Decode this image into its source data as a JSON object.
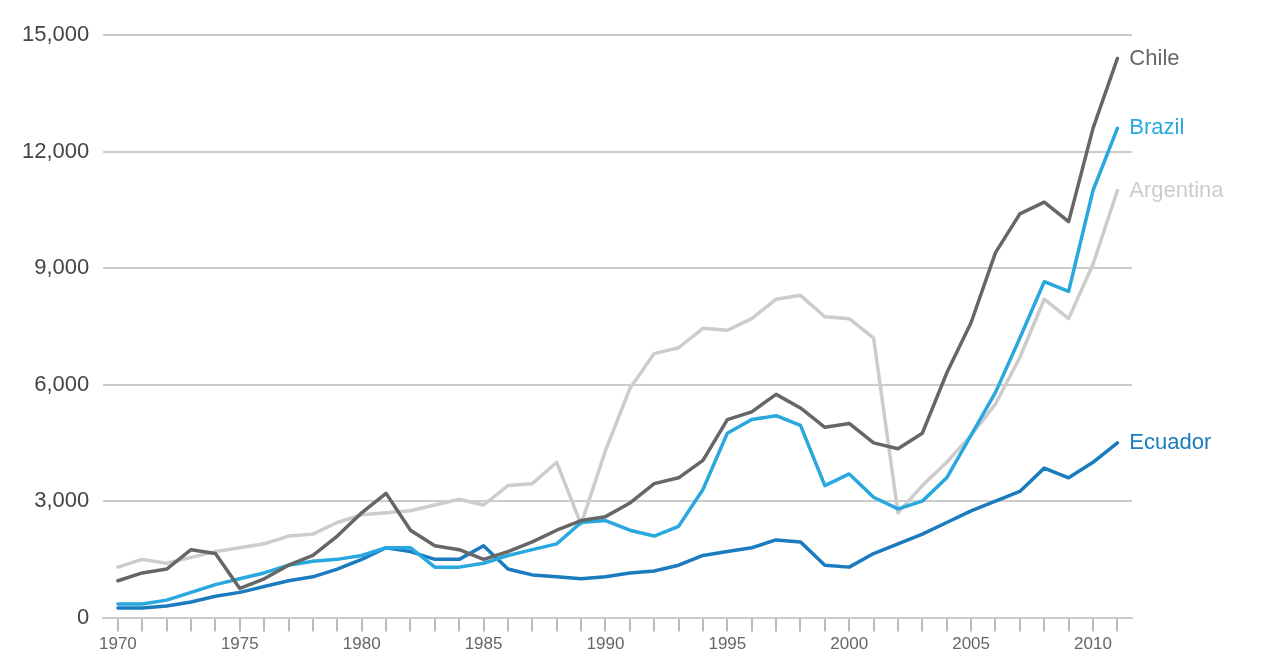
{
  "chart_data": {
    "type": "line",
    "x": [
      1970,
      1971,
      1972,
      1973,
      1974,
      1975,
      1976,
      1977,
      1978,
      1979,
      1980,
      1981,
      1982,
      1983,
      1984,
      1985,
      1986,
      1987,
      1988,
      1989,
      1990,
      1991,
      1992,
      1993,
      1994,
      1995,
      1996,
      1997,
      1998,
      1999,
      2000,
      2001,
      2002,
      2003,
      2004,
      2005,
      2006,
      2007,
      2008,
      2009,
      2010,
      2011
    ],
    "series": [
      {
        "name": "Chile",
        "color": "#666666",
        "values": [
          950,
          1150,
          1250,
          1750,
          1650,
          750,
          1000,
          1350,
          1600,
          2100,
          2700,
          3200,
          2250,
          1850,
          1750,
          1500,
          1700,
          1950,
          2250,
          2500,
          2600,
          2950,
          3450,
          3600,
          4050,
          5100,
          5300,
          5750,
          5400,
          4900,
          5000,
          4500,
          4350,
          4750,
          6300,
          7600,
          9400,
          10400,
          10700,
          10200,
          12600,
          14400
        ]
      },
      {
        "name": "Brazil",
        "color": "#29a8e0",
        "values": [
          350,
          350,
          450,
          650,
          850,
          1000,
          1150,
          1350,
          1450,
          1500,
          1600,
          1800,
          1800,
          1300,
          1300,
          1400,
          1600,
          1750,
          1900,
          2450,
          2500,
          2250,
          2100,
          2350,
          3300,
          4750,
          5100,
          5200,
          4950,
          3400,
          3700,
          3100,
          2800,
          3000,
          3600,
          4700,
          5800,
          7200,
          8650,
          8400,
          11000,
          12600
        ]
      },
      {
        "name": "Argentina",
        "color": "#cccccc",
        "values": [
          1300,
          1500,
          1400,
          1550,
          1700,
          1800,
          1900,
          2100,
          2150,
          2450,
          2650,
          2700,
          2750,
          2900,
          3050,
          2900,
          3400,
          3450,
          4000,
          2400,
          4300,
          5900,
          6800,
          6950,
          7450,
          7400,
          7700,
          8200,
          8300,
          7750,
          7700,
          7200,
          2700,
          3400,
          4000,
          4700,
          5500,
          6700,
          8200,
          7700,
          9100,
          11000
        ]
      },
      {
        "name": "Ecuador",
        "color": "#1a7bbf",
        "values": [
          250,
          250,
          300,
          400,
          550,
          650,
          800,
          950,
          1050,
          1250,
          1500,
          1800,
          1700,
          1500,
          1500,
          1850,
          1250,
          1100,
          1050,
          1000,
          1050,
          1150,
          1200,
          1350,
          1600,
          1700,
          1800,
          2000,
          1950,
          1350,
          1300,
          1650,
          1900,
          2150,
          2450,
          2750,
          3000,
          3250,
          3850,
          3600,
          4000,
          4500
        ]
      }
    ],
    "xlim": [
      1969.4,
      2011.6
    ],
    "xticks": [
      {
        "value": 1970,
        "label": "1970"
      },
      {
        "value": 1971,
        "label": null
      },
      {
        "value": 1972,
        "label": null
      },
      {
        "value": 1973,
        "label": null
      },
      {
        "value": 1974,
        "label": null
      },
      {
        "value": 1975,
        "label": "1975"
      },
      {
        "value": 1976,
        "label": null
      },
      {
        "value": 1977,
        "label": null
      },
      {
        "value": 1978,
        "label": null
      },
      {
        "value": 1979,
        "label": null
      },
      {
        "value": 1980,
        "label": "1980"
      },
      {
        "value": 1981,
        "label": null
      },
      {
        "value": 1982,
        "label": null
      },
      {
        "value": 1983,
        "label": null
      },
      {
        "value": 1984,
        "label": null
      },
      {
        "value": 1985,
        "label": "1985"
      },
      {
        "value": 1986,
        "label": null
      },
      {
        "value": 1987,
        "label": null
      },
      {
        "value": 1988,
        "label": null
      },
      {
        "value": 1989,
        "label": null
      },
      {
        "value": 1990,
        "label": "1990"
      },
      {
        "value": 1991,
        "label": null
      },
      {
        "value": 1992,
        "label": null
      },
      {
        "value": 1993,
        "label": null
      },
      {
        "value": 1994,
        "label": null
      },
      {
        "value": 1995,
        "label": "1995"
      },
      {
        "value": 1996,
        "label": null
      },
      {
        "value": 1997,
        "label": null
      },
      {
        "value": 1998,
        "label": null
      },
      {
        "value": 1999,
        "label": null
      },
      {
        "value": 2000,
        "label": "2000"
      },
      {
        "value": 2001,
        "label": null
      },
      {
        "value": 2002,
        "label": null
      },
      {
        "value": 2003,
        "label": null
      },
      {
        "value": 2004,
        "label": null
      },
      {
        "value": 2005,
        "label": "2005"
      },
      {
        "value": 2006,
        "label": null
      },
      {
        "value": 2007,
        "label": null
      },
      {
        "value": 2008,
        "label": null
      },
      {
        "value": 2009,
        "label": null
      },
      {
        "value": 2010,
        "label": "2010"
      },
      {
        "value": 2011,
        "label": null
      }
    ],
    "ylim": [
      0,
      15000
    ],
    "yticks": [
      {
        "value": 0,
        "label": "0"
      },
      {
        "value": 3000,
        "label": "3,000"
      },
      {
        "value": 6000,
        "label": "6,000"
      },
      {
        "value": 9000,
        "label": "9,000"
      },
      {
        "value": 12000,
        "label": "12,000"
      },
      {
        "value": 15000,
        "label": "15,000"
      }
    ],
    "grid": "y",
    "legend": false,
    "marker": "none",
    "line_style": "solid"
  }
}
